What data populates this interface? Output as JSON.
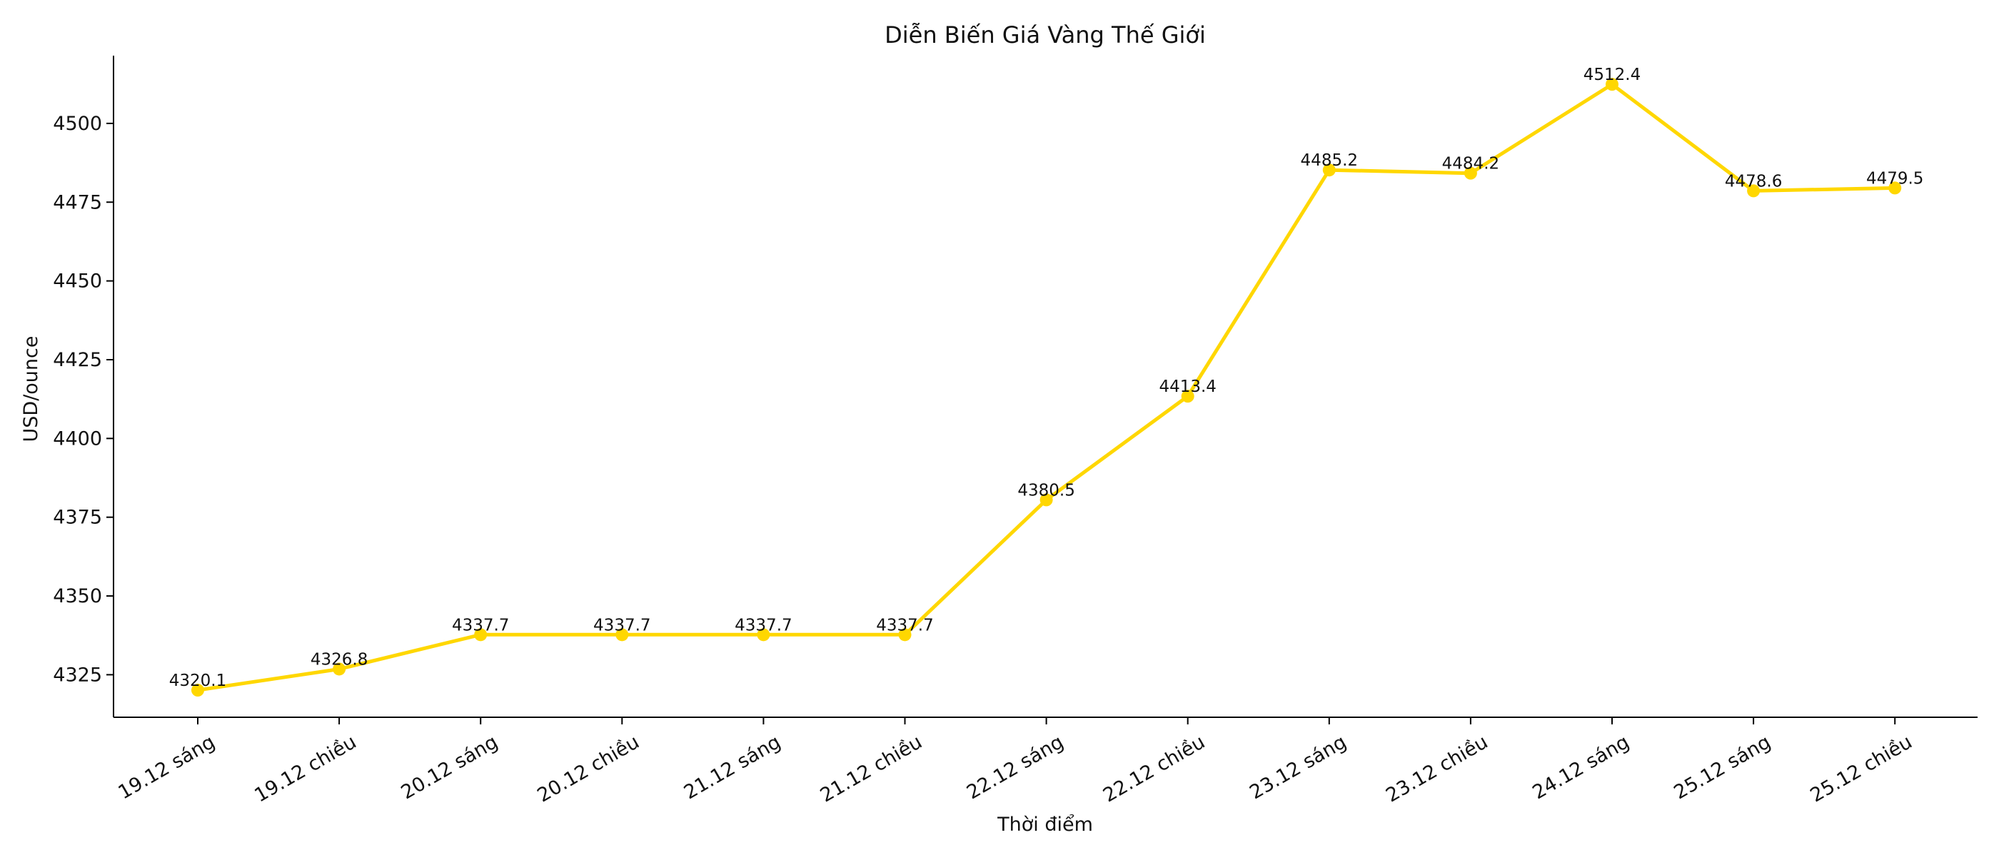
{
  "chart_data": {
    "type": "line",
    "title": "Diễn Biến Giá Vàng Thế Giới",
    "xlabel": "Thời điểm",
    "ylabel": "USD/ounce",
    "categories": [
      "19.12 sáng",
      "19.12 chiều",
      "20.12 sáng",
      "20.12 chiều",
      "21.12 sáng",
      "21.12 chiều",
      "22.12 sáng",
      "22.12 chiều",
      "23.12 sáng",
      "23.12 chiều",
      "24.12 sáng",
      "25.12 sáng",
      "25.12 chiều"
    ],
    "series": [
      {
        "values": [
          4320.1,
          4326.8,
          4337.7,
          4337.7,
          4337.7,
          4337.7,
          4380.5,
          4413.4,
          4485.2,
          4484.2,
          4512.4,
          4478.6,
          4479.5
        ],
        "data_labels": [
          "4320.1",
          "4326.8",
          "4337.7",
          "4337.7",
          "4337.7",
          "4337.7",
          "4380.5",
          "4413.4",
          "4485.2",
          "4484.2",
          "4512.4",
          "4478.6",
          "4479.5"
        ],
        "color": "#FFD700"
      }
    ],
    "ylim": [
      4311.5,
      4521.5
    ],
    "yticks": [
      4325,
      4350,
      4375,
      4400,
      4425,
      4450,
      4475,
      4500
    ],
    "grid": false,
    "legend": "none",
    "x_tick_rotation": "30°"
  }
}
